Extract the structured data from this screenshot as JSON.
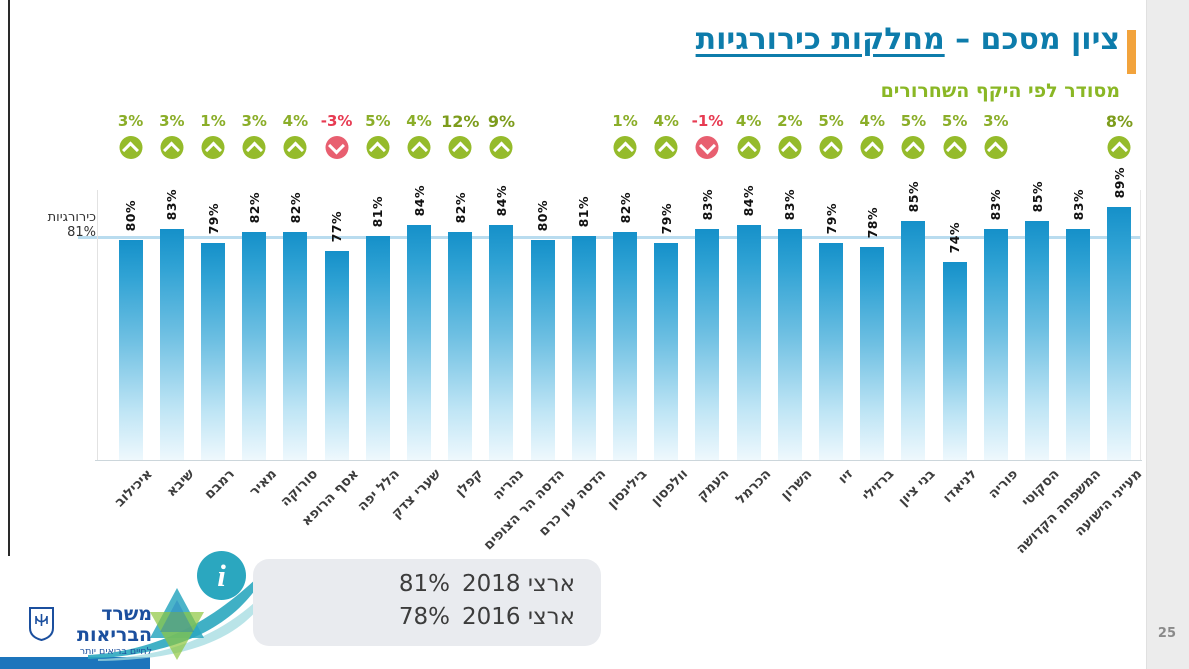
{
  "header": {
    "title_main": "ציון מסכם – ",
    "title_underlined": "מחלקות כירורגיות",
    "subtitle": "מסודר לפי היקף השחרורים"
  },
  "axis": {
    "reference_label": "כירורגיות 81%"
  },
  "chart_data": {
    "type": "bar",
    "title": "ציון מסכם – מחלקות כירורגיות",
    "subtitle": "מסודר לפי היקף השחרורים",
    "reference_line": {
      "value": 81,
      "label": "כירורגיות 81%"
    },
    "categories": [
      "איכילוב",
      "שיבא",
      "רמבם",
      "מאיר",
      "סורוקה",
      "אסף הרופא",
      "הלל יפה",
      "שערי צדק",
      "קפלן",
      "נהריה",
      "הדסה הר הצופים",
      "הדסה עין כרם",
      "בילינסון",
      "וולפסון",
      "העמק",
      "הכרמל",
      "השרון",
      "זיו",
      "ברזילי",
      "בני ציון",
      "לניאדו",
      "פוריה",
      "הסקוטי",
      "המשפחה הקדושה",
      "מעייני הישועה"
    ],
    "values": [
      80,
      83,
      79,
      82,
      82,
      77,
      81,
      84,
      82,
      84,
      80,
      81,
      82,
      79,
      83,
      84,
      83,
      79,
      78,
      85,
      74,
      83,
      85,
      83,
      89
    ],
    "changes": [
      3,
      3,
      1,
      3,
      4,
      -3,
      5,
      4,
      12,
      9,
      null,
      null,
      1,
      4,
      -1,
      4,
      2,
      5,
      4,
      5,
      5,
      3,
      null,
      null,
      8
    ],
    "emphasized_indices": [
      8,
      9,
      24
    ],
    "legend_position": "bottom",
    "grid": false
  },
  "legend": {
    "info_symbol": "i",
    "rows": [
      {
        "label": "ארצי 2018",
        "value": "81%"
      },
      {
        "label": "ארצי 2016",
        "value": "78%"
      }
    ]
  },
  "footer": {
    "ministry_name": "משרד הבריאות",
    "ministry_tagline": "לחיים בריאים יותר",
    "page_number": "25"
  },
  "colors": {
    "bar_top": "#1590c9",
    "bar_bottom": "#eef8fd",
    "positive_green": "#95bb2b",
    "negative_red": "#e85f70",
    "title_teal": "#0d7cab",
    "subtitle_green": "#8ab725",
    "accent_orange": "#f2a33c",
    "logo_blue": "#1b4f9e",
    "info_teal": "#2ba7bf"
  }
}
